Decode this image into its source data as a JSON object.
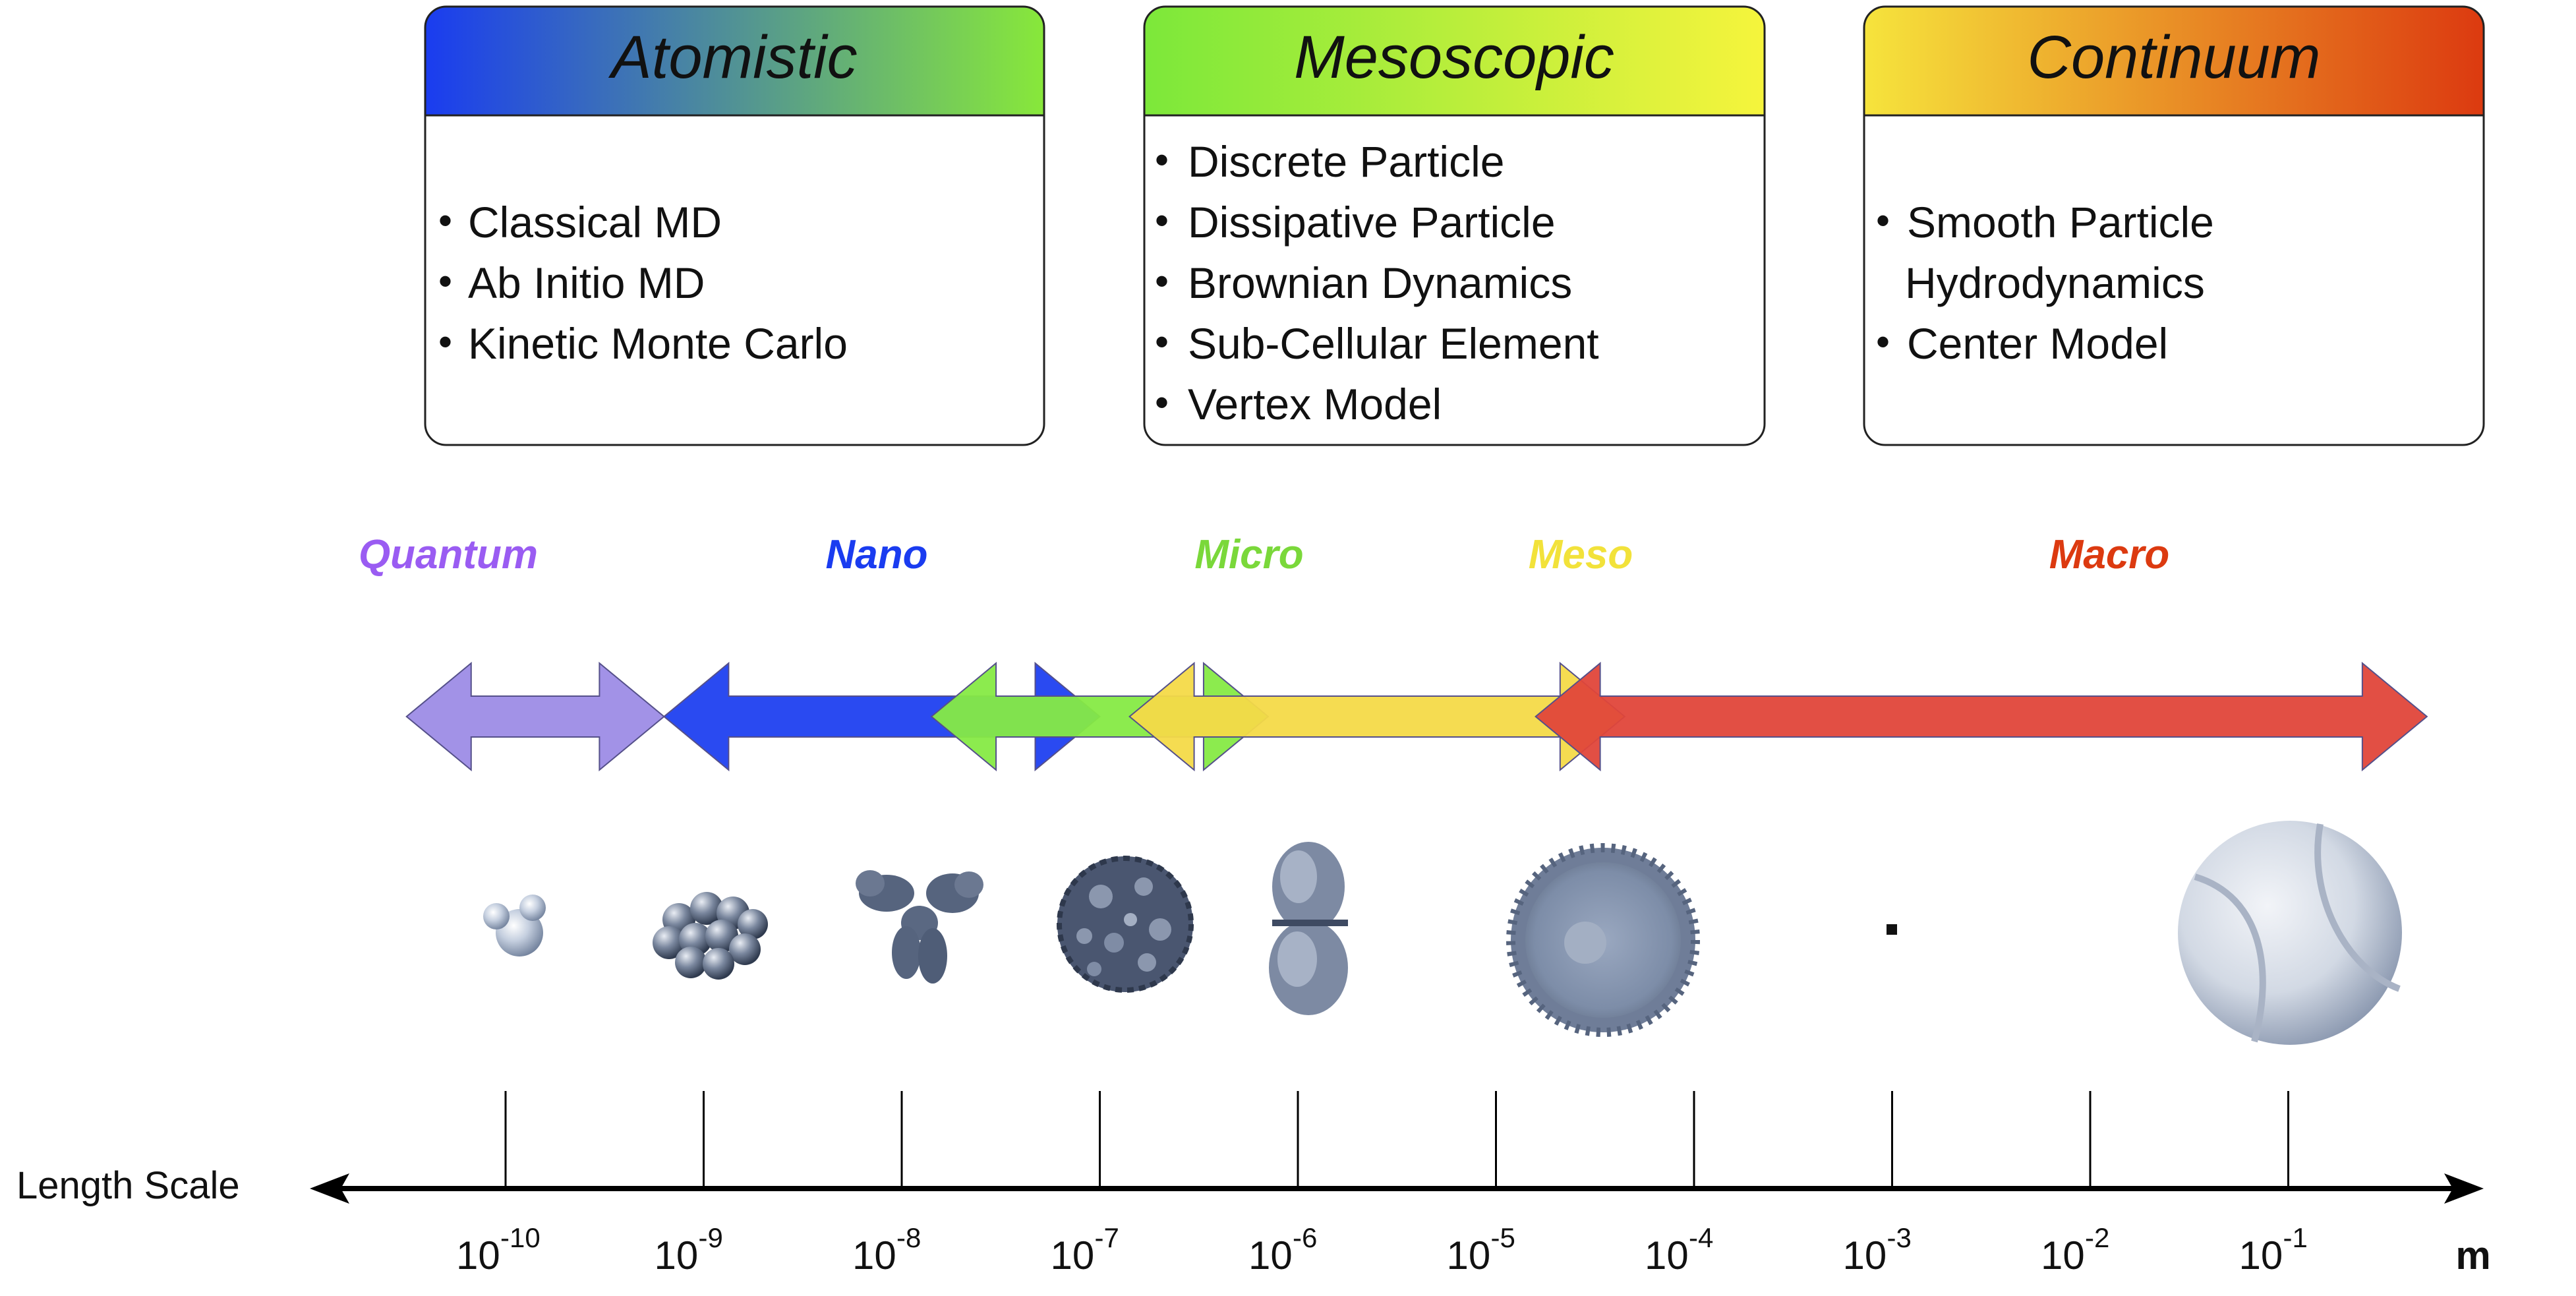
{
  "boxes": [
    {
      "title": "Atomistic",
      "items": [
        [
          "Classical MD"
        ],
        [
          "Ab Initio MD"
        ],
        [
          "Kinetic Monte Carlo"
        ]
      ],
      "colors": [
        "#1a3cf0",
        "#88e83a"
      ]
    },
    {
      "title": "Mesoscopic",
      "items": [
        [
          "Discrete Particle"
        ],
        [
          "Dissipative Particle"
        ],
        [
          "Brownian Dynamics"
        ],
        [
          "Sub-Cellular Element"
        ],
        [
          "Vertex Model"
        ]
      ],
      "colors": [
        "#7ce83a",
        "#f6f43c"
      ]
    },
    {
      "title": "Continuum",
      "items": [
        [
          "Smooth Particle",
          "Hydrodynamics"
        ],
        [
          "Center Model"
        ]
      ],
      "colors": [
        "#f6e43c",
        "#dc3a10"
      ]
    }
  ],
  "regimes": [
    {
      "name": "Quantum",
      "color": "#9a5cf2",
      "from_exp": -10.5,
      "to_exp": -9.2,
      "fill": "#9d8ce6"
    },
    {
      "name": "Nano",
      "color": "#1a3cf0",
      "from_exp": -9.2,
      "to_exp": -7.0,
      "fill": "#1f40f0"
    },
    {
      "name": "Micro",
      "color": "#7ad83a",
      "from_exp": -7.85,
      "to_exp": -6.15,
      "fill": "#86ea44"
    },
    {
      "name": "Meso",
      "color": "#f2e23a",
      "from_exp": -6.85,
      "to_exp": -4.35,
      "fill": "#f4da48"
    },
    {
      "name": "Macro",
      "color": "#dc3a10",
      "from_exp": -4.8,
      "to_exp": -0.3,
      "fill": "#e0463a"
    }
  ],
  "objects": [
    {
      "name": "water-molecule-icon",
      "exp": -10
    },
    {
      "name": "fullerene-cluster-icon",
      "exp": -9
    },
    {
      "name": "antibody-icon",
      "exp": -8
    },
    {
      "name": "virus-icon",
      "exp": -7
    },
    {
      "name": "dividing-bacterium-icon",
      "exp": -6
    },
    {
      "name": "cell-icon",
      "exp": -5
    },
    {
      "name": "tiny-grain-icon",
      "exp": -3
    },
    {
      "name": "tennis-ball-icon",
      "exp": -1
    }
  ],
  "axis": {
    "title": "Length Scale",
    "base": "10",
    "ticks": [
      "-10",
      "-9",
      "-8",
      "-7",
      "-6",
      "-5",
      "-4",
      "-3",
      "-2",
      "-1"
    ],
    "unit": "m"
  }
}
